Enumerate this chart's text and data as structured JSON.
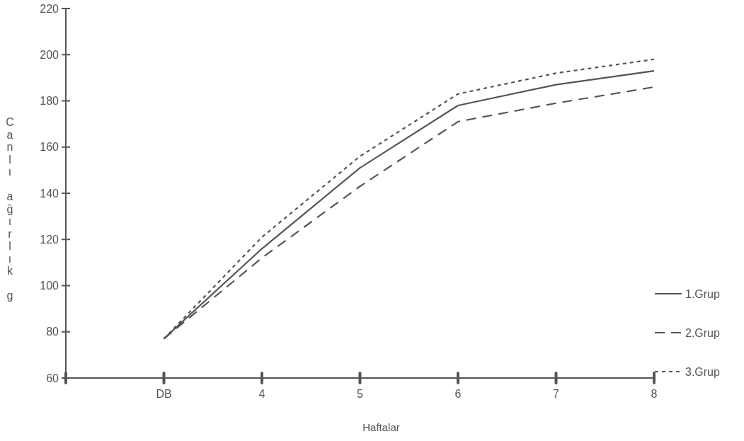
{
  "chart_data": {
    "type": "line",
    "xlabel": "Haftalar",
    "ylabel": "Canlı ağırlık g",
    "categories": [
      null,
      "DB",
      "4",
      "5",
      "6",
      "7",
      "8"
    ],
    "series": [
      {
        "name": "1.Grup",
        "color": "#555555",
        "line_style": "solid",
        "values": [
          null,
          77,
          116,
          151,
          178,
          187,
          193
        ]
      },
      {
        "name": "2.Grup",
        "color": "#555555",
        "line_style": "dashed",
        "values": [
          null,
          77,
          112,
          143,
          171,
          179,
          186
        ]
      },
      {
        "name": "3.Grup",
        "color": "#555555",
        "line_style": "dotted",
        "values": [
          null,
          77,
          121,
          156,
          183,
          192,
          198
        ]
      }
    ],
    "ylim": [
      60,
      220
    ],
    "yticks": [
      60,
      80,
      100,
      120,
      140,
      160,
      180,
      200,
      220
    ],
    "grid": false,
    "legend": "bottom right"
  }
}
